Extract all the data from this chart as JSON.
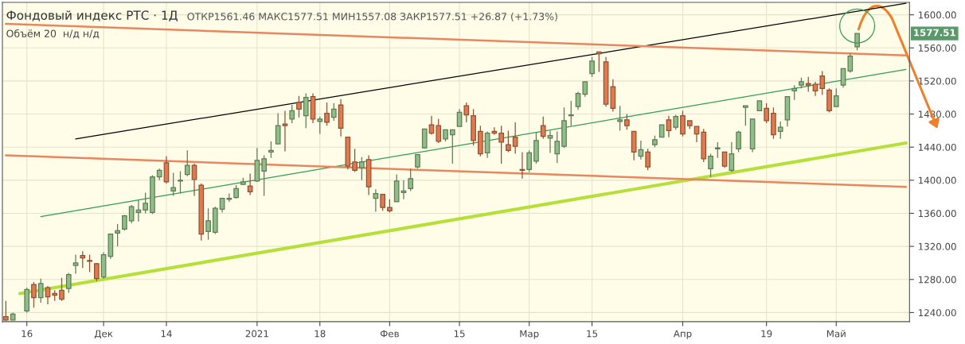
{
  "chart_data": {
    "type": "candlestick",
    "title": "Фондовый индекс РТС · 1Д",
    "subtitle": "ОТКР1561.46 МАКС1577.51 МИН1557.08 ЗАКР1577.51 +26.87 (+1.73%)",
    "annotations": [
      "Объём 20  н/д н/д",
      "1577.51"
    ],
    "categories": [
      null,
      null,
      null,
      "16",
      null,
      null,
      null,
      null,
      null,
      null,
      null,
      null,
      null,
      null,
      "Дек",
      null,
      null,
      null,
      null,
      null,
      null,
      null,
      null,
      "14",
      null,
      null,
      null,
      null,
      null,
      null,
      null,
      null,
      null,
      null,
      null,
      null,
      "2021",
      null,
      null,
      null,
      null,
      null,
      null,
      null,
      null,
      "18",
      null,
      null,
      null,
      null,
      null,
      null,
      null,
      null,
      null,
      "Фев",
      null,
      null,
      null,
      null,
      null,
      null,
      null,
      null,
      null,
      "15",
      null,
      null,
      null,
      null,
      null,
      null,
      null,
      null,
      null,
      "Мар",
      null,
      null,
      null,
      null,
      null,
      null,
      null,
      null,
      "15",
      null,
      null,
      null,
      null,
      null,
      null,
      null,
      null,
      null,
      null,
      null,
      null,
      "Апр",
      null,
      null,
      null,
      null,
      null,
      null,
      null,
      null,
      null,
      null,
      null,
      "19",
      null,
      null,
      null,
      null,
      null,
      null,
      null,
      null,
      null,
      "Май",
      null,
      null,
      null,
      null,
      null,
      null,
      null,
      null,
      null,
      null
    ],
    "ohlc": [
      [
        1235,
        1254,
        1230,
        1231
      ],
      [
        1231,
        1240,
        1231,
        1238
      ],
      null,
      [
        1242,
        1270,
        1240,
        1268
      ],
      [
        1274,
        1277,
        1246,
        1258
      ],
      [
        1258,
        1281,
        1252,
        1275
      ],
      [
        1270,
        1272,
        1250,
        1259
      ],
      [
        1263,
        1267,
        1254,
        1261
      ],
      [
        1267,
        1282,
        1254,
        1256
      ],
      [
        1269,
        1288,
        1264,
        1286
      ],
      [
        1297,
        1310,
        1287,
        1300
      ],
      [
        1309,
        1314,
        1294,
        1306
      ],
      [
        1303,
        1310,
        1289,
        1302
      ],
      [
        1299,
        1300,
        1278,
        1281
      ],
      [
        1283,
        1313,
        1281,
        1310
      ],
      [
        1308,
        1335,
        1305,
        1335
      ],
      [
        1336,
        1347,
        1320,
        1339
      ],
      [
        1341,
        1358,
        1339,
        1357
      ],
      [
        1351,
        1370,
        1348,
        1368
      ],
      [
        1361,
        1376,
        1350,
        1364
      ],
      [
        1364,
        1385,
        1360,
        1372
      ],
      [
        1361,
        1406,
        1359,
        1404
      ],
      [
        1404,
        1414,
        1400,
        1412
      ],
      [
        1421,
        1429,
        1396,
        1398
      ],
      [
        1387,
        1409,
        1381,
        1391
      ],
      [
        1399,
        1411,
        1384,
        1400
      ],
      [
        1407,
        1436,
        1405,
        1418
      ],
      [
        1418,
        1420,
        1381,
        1401
      ],
      [
        1394,
        1396,
        1327,
        1335
      ],
      [
        1338,
        1366,
        1328,
        1351
      ],
      [
        1337,
        1368,
        1335,
        1366
      ],
      [
        1365,
        1378,
        1361,
        1378
      ],
      [
        1377,
        1384,
        1374,
        1378
      ],
      [
        1379,
        1394,
        1378,
        1390
      ],
      [
        1395,
        1403,
        1394,
        1398
      ],
      [
        1393,
        1408,
        1382,
        1386
      ],
      [
        1399,
        1439,
        1398,
        1424
      ],
      [
        1411,
        1430,
        1381,
        1426
      ],
      [
        1434,
        1447,
        1427,
        1436
      ],
      [
        1444,
        1481,
        1444,
        1466
      ],
      [
        1468,
        1484,
        1435,
        1466
      ],
      [
        1474,
        1491,
        1469,
        1484
      ],
      [
        1494,
        1502,
        1476,
        1486
      ],
      [
        1478,
        1505,
        1463,
        1500
      ],
      [
        1501,
        1505,
        1469,
        1474
      ],
      [
        1471,
        1477,
        1456,
        1474
      ],
      [
        1481,
        1494,
        1466,
        1470
      ],
      [
        1476,
        1493,
        1472,
        1486
      ],
      [
        1491,
        1498,
        1453,
        1463
      ],
      [
        1452,
        1452,
        1413,
        1417
      ],
      [
        1422,
        1438,
        1410,
        1412
      ],
      [
        1415,
        1428,
        1400,
        1422
      ],
      [
        1425,
        1430,
        1382,
        1392
      ],
      [
        1378,
        1389,
        1362,
        1384
      ],
      [
        1383,
        1383,
        1363,
        1367
      ],
      [
        1367,
        1377,
        1361,
        1363
      ],
      [
        1374,
        1407,
        1374,
        1399
      ],
      [
        1385,
        1400,
        1377,
        1387
      ],
      [
        1390,
        1414,
        1387,
        1402
      ],
      [
        1416,
        1431,
        1414,
        1431
      ],
      [
        1439,
        1462,
        1438,
        1462
      ],
      [
        1467,
        1478,
        1455,
        1457
      ],
      [
        1466,
        1474,
        1445,
        1447
      ],
      [
        1450,
        1461,
        1447,
        1461
      ],
      [
        1455,
        1461,
        1420,
        1461
      ],
      [
        1465,
        1486,
        1465,
        1482
      ],
      [
        1490,
        1494,
        1470,
        1479
      ],
      [
        1478,
        1486,
        1442,
        1448
      ],
      [
        1459,
        1466,
        1429,
        1432
      ],
      [
        1433,
        1459,
        1427,
        1457
      ],
      [
        1459,
        1464,
        1455,
        1457
      ],
      [
        1457,
        1466,
        1420,
        1446
      ],
      [
        1443,
        1460,
        1434,
        1436
      ],
      [
        1452,
        1470,
        1432,
        1441
      ],
      [
        1413,
        1434,
        1402,
        1412
      ],
      [
        1413,
        1436,
        1410,
        1433
      ],
      [
        1423,
        1458,
        1420,
        1448
      ],
      [
        1466,
        1477,
        1450,
        1453
      ],
      [
        1451,
        1460,
        1433,
        1454
      ],
      [
        1432,
        1459,
        1421,
        1447
      ],
      [
        1441,
        1488,
        1439,
        1472
      ],
      [
        1478,
        1496,
        1466,
        1479
      ],
      [
        1489,
        1507,
        1485,
        1505
      ],
      [
        1504,
        1519,
        1501,
        1519
      ],
      [
        1529,
        1549,
        1525,
        1544
      ],
      [
        1555,
        1555,
        1531,
        1553
      ],
      [
        1543,
        1549,
        1489,
        1492
      ],
      [
        1513,
        1522,
        1483,
        1487
      ],
      [
        1471,
        1490,
        1460,
        1473
      ],
      [
        1473,
        1480,
        1461,
        1466
      ],
      [
        1459,
        1459,
        1424,
        1434
      ],
      [
        1429,
        1448,
        1425,
        1437
      ],
      [
        1434,
        1438,
        1412,
        1416
      ],
      [
        1443,
        1454,
        1440,
        1449
      ],
      [
        1452,
        1467,
        1452,
        1467
      ],
      [
        1473,
        1478,
        1452,
        1460
      ],
      [
        1464,
        1479,
        1461,
        1477
      ],
      [
        1478,
        1484,
        1453,
        1456
      ],
      [
        1472,
        1472,
        1462,
        1466
      ],
      [
        1465,
        1465,
        1446,
        1456
      ],
      [
        1458,
        1462,
        1422,
        1426
      ],
      [
        1414,
        1432,
        1404,
        1429
      ],
      [
        1438,
        1446,
        1427,
        1439
      ],
      [
        1434,
        1434,
        1415,
        1417
      ],
      [
        1412,
        1446,
        1410,
        1432
      ],
      [
        1438,
        1460,
        1434,
        1458
      ],
      [
        1488,
        1490,
        1466,
        1490
      ],
      [
        1438,
        1474,
        1434,
        1474
      ],
      [
        1484,
        1496,
        1484,
        1496
      ],
      [
        1487,
        1493,
        1469,
        1472
      ],
      [
        1481,
        1488,
        1450,
        1455
      ],
      [
        1459,
        1471,
        1450,
        1464
      ],
      [
        1473,
        1501,
        1465,
        1501
      ],
      [
        1508,
        1515,
        1497,
        1511
      ],
      [
        1515,
        1524,
        1511,
        1519
      ],
      [
        1517,
        1525,
        1507,
        1515
      ],
      [
        1516,
        1519,
        1502,
        1508
      ],
      [
        1526,
        1532,
        1503,
        1511
      ],
      [
        1509,
        1511,
        1482,
        1484
      ],
      [
        1489,
        1511,
        1489,
        1502
      ],
      [
        1515,
        1535,
        1512,
        1535
      ],
      [
        1532,
        1553,
        1530,
        1550
      ],
      [
        1561.46,
        1577.51,
        1557.08,
        1577.51
      ],
      null,
      null,
      null,
      null,
      null,
      null,
      null
    ],
    "colors": [
      "#e07b4f",
      "#8fbf86",
      null,
      "#8fbf86",
      "#e07b4f",
      "#8fbf86",
      "#e07b4f",
      "#e07b4f",
      "#e07b4f",
      "#8fbf86",
      "#8fbf86",
      "#e07b4f",
      "#e07b4f",
      "#e07b4f",
      "#8fbf86",
      "#8fbf86",
      "#8fbf86",
      "#8fbf86",
      "#8fbf86",
      "#8fbf86",
      "#8fbf86",
      "#8fbf86",
      "#8fbf86",
      "#e07b4f",
      "#8fbf86",
      "#8fbf86",
      "#8fbf86",
      "#e07b4f",
      "#e07b4f",
      "#8fbf86",
      "#8fbf86",
      "#8fbf86",
      "#8fbf86",
      "#8fbf86",
      "#8fbf86",
      "#e07b4f",
      "#8fbf86",
      "#8fbf86",
      "#8fbf86",
      "#8fbf86",
      "#e07b4f",
      "#8fbf86",
      "#e07b4f",
      "#8fbf86",
      "#e07b4f",
      "#8fbf86",
      "#e07b4f",
      "#8fbf86",
      "#e07b4f",
      "#e07b4f",
      "#e07b4f",
      "#8fbf86",
      "#e07b4f",
      "#8fbf86",
      "#e07b4f",
      "#e07b4f",
      "#8fbf86",
      "#8fbf86",
      "#8fbf86",
      "#8fbf86",
      "#8fbf86",
      "#e07b4f",
      "#e07b4f",
      "#8fbf86",
      "#8fbf86",
      "#8fbf86",
      "#e07b4f",
      "#e07b4f",
      "#e07b4f",
      "#8fbf86",
      "#e07b4f",
      "#e07b4f",
      "#e07b4f",
      "#e07b4f",
      "#e07b4f",
      "#8fbf86",
      "#8fbf86",
      "#e07b4f",
      "#8fbf86",
      "#8fbf86",
      "#8fbf86",
      "#8fbf86",
      "#8fbf86",
      "#8fbf86",
      "#8fbf86",
      "#e07b4f",
      "#e07b4f",
      "#e07b4f",
      "#8fbf86",
      "#e07b4f",
      "#e07b4f",
      "#8fbf86",
      "#e07b4f",
      "#8fbf86",
      "#8fbf86",
      "#e07b4f",
      "#8fbf86",
      "#e07b4f",
      "#e07b4f",
      "#e07b4f",
      "#e07b4f",
      "#8fbf86",
      "#8fbf86",
      "#e07b4f",
      "#8fbf86",
      "#8fbf86",
      "#8fbf86",
      "#8fbf86",
      "#8fbf86",
      "#e07b4f",
      "#e07b4f",
      "#8fbf86",
      "#8fbf86",
      "#8fbf86",
      "#8fbf86",
      "#e07b4f",
      "#e07b4f",
      "#e07b4f",
      "#e07b4f",
      "#8fbf86",
      "#8fbf86",
      "#8fbf86",
      "#8fbf86",
      null,
      null,
      null,
      null,
      null,
      null,
      null
    ],
    "series": [
      {
        "type": "line",
        "color": "#000000",
        "values": [
          null,
          null,
          null,
          null,
          null,
          null,
          null,
          null,
          null,
          null,
          1450,
          null,
          null,
          null,
          null,
          null,
          null,
          null,
          null,
          null,
          null,
          null,
          null,
          null,
          null,
          null,
          null,
          null,
          null,
          null,
          null,
          null,
          null,
          null,
          null,
          null,
          null,
          null,
          null,
          null,
          null,
          null,
          null,
          null,
          null,
          null,
          null,
          null,
          null,
          null,
          null,
          null,
          null,
          null,
          null,
          null,
          null,
          null,
          null,
          null,
          null,
          null,
          null,
          null,
          null,
          null,
          null,
          null,
          null,
          null,
          null,
          null,
          null,
          null,
          null,
          null,
          null,
          null,
          null,
          null,
          null,
          null,
          null,
          null,
          null,
          null,
          null,
          null,
          null,
          null,
          null,
          null,
          null,
          null,
          null,
          null,
          null,
          null,
          null,
          null,
          null,
          null,
          null,
          null,
          null,
          null,
          null,
          null,
          null,
          null,
          null,
          null,
          null,
          null,
          null,
          null,
          null,
          null,
          null,
          null,
          null,
          null,
          null,
          null,
          null,
          null,
          null,
          null,
          null,
          1614
        ]
      },
      {
        "type": "line",
        "color": "#2e9e4f",
        "values": [
          null,
          null,
          null,
          null,
          null,
          1356,
          null,
          null,
          null,
          null,
          null,
          null,
          null,
          null,
          null,
          null,
          null,
          null,
          null,
          null,
          null,
          null,
          null,
          null,
          null,
          null,
          null,
          null,
          null,
          null,
          null,
          null,
          null,
          null,
          null,
          null,
          null,
          null,
          null,
          null,
          null,
          null,
          null,
          null,
          null,
          null,
          null,
          null,
          null,
          null,
          null,
          null,
          null,
          null,
          null,
          null,
          null,
          null,
          null,
          null,
          null,
          null,
          null,
          null,
          null,
          null,
          null,
          null,
          null,
          null,
          null,
          null,
          null,
          null,
          null,
          null,
          null,
          null,
          null,
          null,
          null,
          null,
          null,
          null,
          null,
          null,
          null,
          null,
          null,
          null,
          null,
          null,
          null,
          null,
          null,
          null,
          null,
          null,
          null,
          null,
          null,
          null,
          null,
          null,
          null,
          null,
          null,
          null,
          null,
          null,
          null,
          null,
          null,
          null,
          null,
          null,
          null,
          null,
          null,
          null,
          null,
          null,
          null,
          null,
          null,
          null,
          null,
          null,
          null,
          1534
        ]
      },
      {
        "type": "line",
        "color": "#b5e03a",
        "values": [
          null,
          null,
          1263,
          null,
          null,
          null,
          null,
          null,
          null,
          null,
          null,
          null,
          null,
          null,
          null,
          null,
          null,
          null,
          null,
          null,
          null,
          null,
          null,
          null,
          null,
          null,
          null,
          null,
          null,
          null,
          null,
          null,
          null,
          null,
          null,
          null,
          null,
          null,
          null,
          null,
          null,
          null,
          null,
          null,
          null,
          null,
          null,
          null,
          null,
          null,
          null,
          null,
          null,
          null,
          null,
          null,
          null,
          null,
          null,
          null,
          null,
          null,
          null,
          null,
          null,
          null,
          null,
          null,
          null,
          null,
          null,
          null,
          null,
          null,
          null,
          null,
          null,
          null,
          null,
          null,
          null,
          null,
          null,
          null,
          null,
          null,
          null,
          null,
          null,
          null,
          null,
          null,
          null,
          null,
          null,
          null,
          null,
          null,
          null,
          null,
          null,
          null,
          null,
          null,
          null,
          null,
          null,
          null,
          null,
          null,
          null,
          null,
          null,
          null,
          null,
          null,
          null,
          null,
          null,
          null,
          null,
          null,
          null,
          null,
          null,
          null,
          null,
          null,
          null,
          1445
        ]
      },
      {
        "type": "line",
        "color": "#e8865f",
        "values": [
          1589,
          null,
          null,
          null,
          null,
          null,
          null,
          null,
          null,
          null,
          null,
          null,
          null,
          null,
          null,
          null,
          null,
          null,
          null,
          null,
          null,
          null,
          null,
          null,
          null,
          null,
          null,
          null,
          null,
          null,
          null,
          null,
          null,
          null,
          null,
          null,
          null,
          null,
          null,
          null,
          null,
          null,
          null,
          null,
          null,
          null,
          null,
          null,
          null,
          null,
          null,
          null,
          null,
          null,
          null,
          null,
          null,
          null,
          null,
          null,
          null,
          null,
          null,
          null,
          null,
          null,
          null,
          null,
          null,
          null,
          null,
          null,
          null,
          null,
          null,
          null,
          null,
          null,
          null,
          null,
          null,
          null,
          null,
          null,
          null,
          null,
          null,
          null,
          null,
          null,
          null,
          null,
          null,
          null,
          null,
          null,
          null,
          null,
          null,
          null,
          null,
          null,
          null,
          null,
          null,
          null,
          null,
          null,
          null,
          null,
          null,
          null,
          null,
          null,
          null,
          null,
          null,
          null,
          null,
          null,
          null,
          null,
          null,
          null,
          null,
          null,
          null,
          null,
          null,
          1551
        ]
      },
      {
        "type": "line",
        "color": "#e8865f",
        "values": [
          1430,
          null,
          null,
          null,
          null,
          null,
          null,
          null,
          null,
          null,
          null,
          null,
          null,
          null,
          null,
          null,
          null,
          null,
          null,
          null,
          null,
          null,
          null,
          null,
          null,
          null,
          null,
          null,
          null,
          null,
          null,
          null,
          null,
          null,
          null,
          null,
          null,
          null,
          null,
          null,
          null,
          null,
          null,
          null,
          null,
          null,
          null,
          null,
          null,
          null,
          null,
          null,
          null,
          null,
          null,
          null,
          null,
          null,
          null,
          null,
          null,
          null,
          null,
          null,
          null,
          null,
          null,
          null,
          null,
          null,
          null,
          null,
          null,
          null,
          null,
          null,
          null,
          null,
          null,
          null,
          null,
          null,
          null,
          null,
          null,
          null,
          null,
          null,
          null,
          null,
          null,
          null,
          null,
          null,
          null,
          null,
          null,
          null,
          null,
          null,
          null,
          null,
          null,
          null,
          null,
          null,
          null,
          null,
          null,
          null,
          null,
          null,
          null,
          null,
          null,
          null,
          null,
          null,
          null,
          null,
          null,
          null,
          null,
          null,
          null,
          null,
          null,
          null,
          null,
          1392
        ]
      }
    ],
    "ylim": [
      1229,
      1615
    ],
    "yticks": [
      {
        "value": 1240,
        "label": "1240.00"
      },
      {
        "value": 1280,
        "label": "1280.00"
      },
      {
        "value": 1320,
        "label": "1320.00"
      },
      {
        "value": 1360,
        "label": "1360.00"
      },
      {
        "value": 1400,
        "label": "1400.00"
      },
      {
        "value": 1440,
        "label": "1440.00"
      },
      {
        "value": 1480,
        "label": "1480.00"
      },
      {
        "value": 1520,
        "label": "1520.00"
      },
      {
        "value": 1560,
        "label": "1560.00"
      },
      {
        "value": 1600,
        "label": "1600.00"
      }
    ],
    "grid": true
  }
}
